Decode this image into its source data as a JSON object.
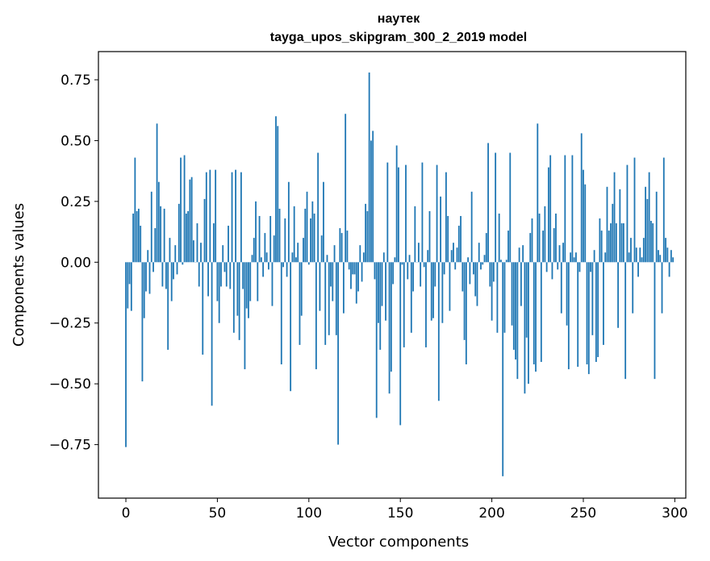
{
  "chart_data": {
    "type": "bar",
    "title_line1": "наутек",
    "title_line2": "tayga_upos_skipgram_300_2_2019 model",
    "xlabel": "Vector components",
    "ylabel": "Components values",
    "xlim": [
      -15,
      306
    ],
    "ylim": [
      -0.97,
      0.866
    ],
    "xticks": [
      0,
      50,
      100,
      150,
      200,
      250,
      300
    ],
    "xtick_labels": [
      "0",
      "50",
      "100",
      "150",
      "200",
      "250",
      "300"
    ],
    "yticks": [
      -0.75,
      -0.5,
      -0.25,
      0.0,
      0.25,
      0.5,
      0.75
    ],
    "ytick_labels": [
      "−0.75",
      "−0.50",
      "−0.25",
      "0.00",
      "0.25",
      "0.50",
      "0.75"
    ],
    "grid": false,
    "bar_color": "#1f77b4",
    "values": [
      -0.76,
      -0.19,
      -0.09,
      -0.2,
      0.2,
      0.43,
      0.21,
      0.22,
      0.15,
      -0.49,
      -0.23,
      -0.12,
      0.05,
      -0.13,
      0.29,
      -0.04,
      0.14,
      0.57,
      0.33,
      0.23,
      -0.1,
      0.22,
      -0.11,
      -0.36,
      0.1,
      -0.16,
      -0.07,
      0.07,
      -0.05,
      0.24,
      0.43,
      -0.01,
      0.44,
      0.2,
      0.21,
      0.34,
      0.35,
      0.09,
      0.0,
      0.16,
      -0.1,
      0.08,
      -0.38,
      0.26,
      0.37,
      -0.14,
      0.38,
      -0.59,
      0.16,
      0.38,
      -0.16,
      -0.25,
      -0.1,
      0.07,
      -0.04,
      -0.1,
      0.15,
      -0.11,
      0.37,
      -0.29,
      0.38,
      -0.22,
      -0.32,
      0.37,
      -0.11,
      -0.44,
      -0.19,
      -0.23,
      -0.16,
      0.03,
      0.1,
      0.25,
      -0.16,
      0.19,
      0.02,
      -0.06,
      0.12,
      0.04,
      -0.03,
      0.19,
      -0.18,
      0.11,
      0.6,
      0.56,
      0.22,
      -0.42,
      -0.02,
      0.18,
      -0.06,
      0.33,
      -0.53,
      0.04,
      0.23,
      0.02,
      0.08,
      -0.34,
      -0.22,
      0.1,
      0.22,
      0.29,
      -0.01,
      0.18,
      0.25,
      0.2,
      -0.44,
      0.45,
      -0.2,
      0.11,
      0.33,
      -0.34,
      0.03,
      -0.3,
      -0.1,
      -0.16,
      0.07,
      -0.3,
      -0.75,
      0.14,
      0.12,
      -0.21,
      0.61,
      0.13,
      -0.03,
      -0.11,
      -0.05,
      -0.05,
      -0.17,
      -0.12,
      0.07,
      -0.08,
      0.04,
      0.24,
      0.21,
      0.78,
      0.5,
      0.54,
      -0.07,
      -0.64,
      -0.25,
      -0.36,
      -0.18,
      0.04,
      -0.24,
      0.41,
      -0.54,
      -0.45,
      -0.09,
      0.02,
      0.48,
      0.39,
      -0.67,
      -0.01,
      -0.35,
      0.4,
      -0.07,
      0.03,
      -0.29,
      -0.12,
      0.23,
      0.0,
      0.08,
      -0.1,
      0.41,
      -0.02,
      -0.35,
      0.05,
      0.21,
      -0.24,
      -0.23,
      -0.1,
      0.4,
      -0.57,
      0.27,
      -0.25,
      -0.05,
      0.37,
      0.19,
      -0.2,
      0.05,
      0.08,
      -0.03,
      0.06,
      0.15,
      0.19,
      -0.12,
      -0.32,
      -0.42,
      0.02,
      -0.09,
      0.29,
      -0.05,
      -0.14,
      -0.18,
      0.08,
      -0.03,
      -0.01,
      0.03,
      0.12,
      0.49,
      -0.1,
      -0.24,
      -0.08,
      0.45,
      -0.29,
      0.2,
      0.01,
      -0.88,
      -0.29,
      0.01,
      0.13,
      0.45,
      -0.26,
      -0.36,
      -0.4,
      -0.48,
      0.06,
      -0.18,
      0.07,
      -0.54,
      -0.31,
      -0.5,
      0.12,
      0.18,
      -0.42,
      -0.45,
      0.57,
      0.2,
      -0.41,
      0.13,
      0.23,
      -0.04,
      0.39,
      0.44,
      -0.07,
      0.14,
      0.2,
      -0.03,
      0.07,
      -0.21,
      0.08,
      0.44,
      -0.26,
      -0.44,
      0.04,
      0.44,
      0.02,
      0.04,
      -0.43,
      -0.04,
      0.53,
      0.38,
      0.32,
      -0.42,
      -0.46,
      -0.04,
      -0.3,
      0.05,
      -0.41,
      -0.39,
      0.18,
      0.13,
      -0.34,
      0.04,
      0.31,
      0.13,
      0.16,
      0.24,
      0.37,
      0.16,
      -0.27,
      0.3,
      0.16,
      0.16,
      -0.48,
      0.4,
      0.04,
      0.1,
      -0.21,
      0.43,
      0.06,
      -0.06,
      0.06,
      0.02,
      0.1,
      0.31,
      0.26,
      0.37,
      0.17,
      0.16,
      -0.48,
      0.29,
      0.05,
      0.03,
      -0.21,
      0.43,
      0.1,
      0.06,
      -0.06,
      0.05,
      0.02
    ]
  }
}
